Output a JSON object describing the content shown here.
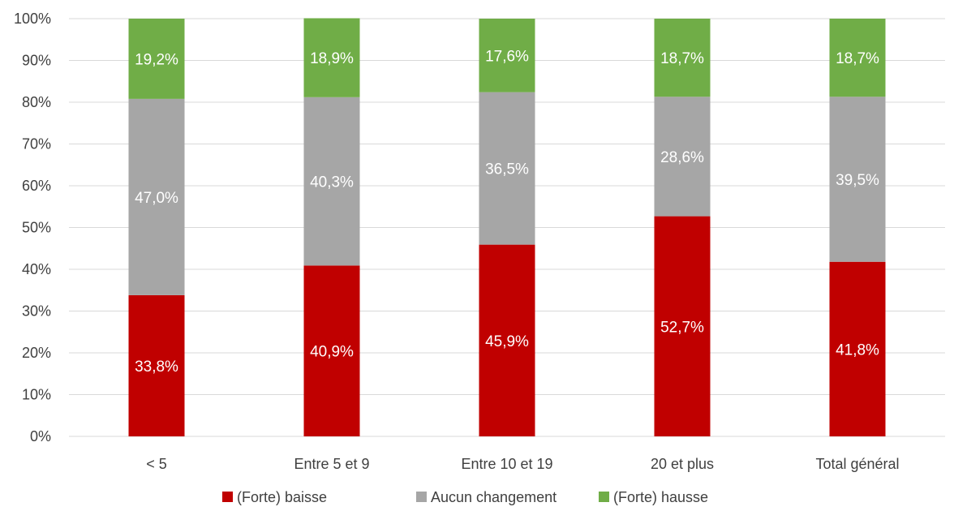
{
  "chart_data": {
    "type": "bar",
    "stacked": true,
    "title": "",
    "xlabel": "",
    "ylabel": "",
    "ylim": [
      0,
      100
    ],
    "yticks": [
      "0%",
      "10%",
      "20%",
      "30%",
      "40%",
      "50%",
      "60%",
      "70%",
      "80%",
      "90%",
      "100%"
    ],
    "grid": true,
    "legend_position": "bottom",
    "categories": [
      "< 5",
      "Entre 5 et 9",
      "Entre 10 et 19",
      "20 et plus",
      "Total général"
    ],
    "series": [
      {
        "name": "(Forte) baisse",
        "color": "#c00000",
        "values": [
          33.8,
          40.9,
          45.9,
          52.7,
          41.8
        ],
        "labels": [
          "33,8%",
          "40,9%",
          "45,9%",
          "52,7%",
          "41,8%"
        ]
      },
      {
        "name": "Aucun changement",
        "color": "#a6a6a6",
        "values": [
          47.0,
          40.3,
          36.5,
          28.6,
          39.5
        ],
        "labels": [
          "47,0%",
          "40,3%",
          "36,5%",
          "28,6%",
          "39,5%"
        ]
      },
      {
        "name": "(Forte) hausse",
        "color": "#70ad47",
        "values": [
          19.2,
          18.9,
          17.6,
          18.7,
          18.7
        ],
        "labels": [
          "19,2%",
          "18,9%",
          "17,6%",
          "18,7%",
          "18,7%"
        ]
      }
    ]
  }
}
